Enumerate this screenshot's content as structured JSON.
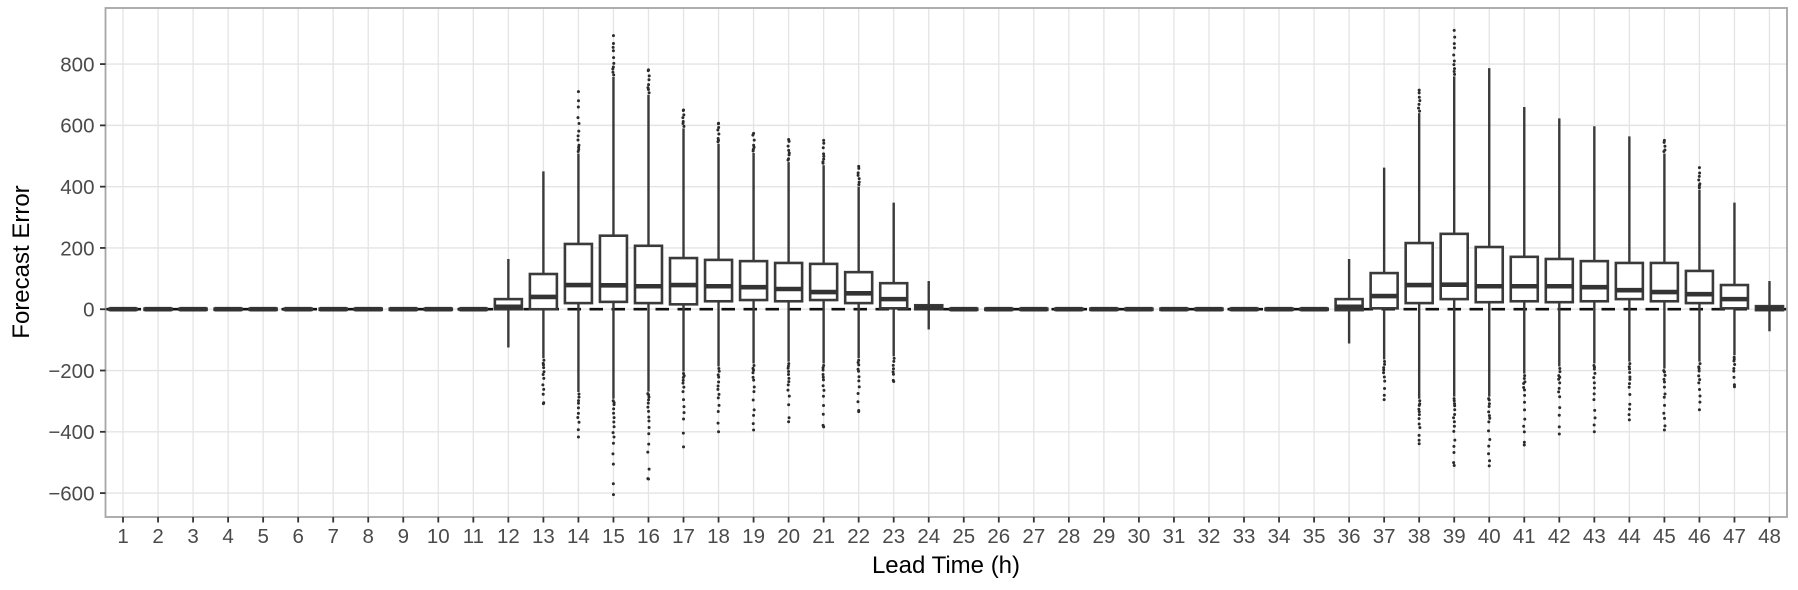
{
  "figure": {
    "kind": "boxplot-figure"
  },
  "chart_data": {
    "type": "boxplot",
    "title": "",
    "xlabel": "Lead Time (h)",
    "ylabel": "Forecast Error",
    "x_categories": [
      1,
      2,
      3,
      4,
      5,
      6,
      7,
      8,
      9,
      10,
      11,
      12,
      13,
      14,
      15,
      16,
      17,
      18,
      19,
      20,
      21,
      22,
      23,
      24,
      25,
      26,
      27,
      28,
      29,
      30,
      31,
      32,
      33,
      34,
      35,
      36,
      37,
      38,
      39,
      40,
      41,
      42,
      43,
      44,
      45,
      46,
      47,
      48
    ],
    "ylim": [
      -678,
      983
    ],
    "yticks": [
      {
        "v": -600,
        "label": "−600"
      },
      {
        "v": -400,
        "label": "−400"
      },
      {
        "v": -200,
        "label": "−200"
      },
      {
        "v": 0,
        "label": "0"
      },
      {
        "v": 200,
        "label": "200"
      },
      {
        "v": 400,
        "label": "400"
      },
      {
        "v": 600,
        "label": "600"
      },
      {
        "v": 800,
        "label": "800"
      }
    ],
    "grid": true,
    "legend": "none",
    "reference_line": {
      "y": 0,
      "style": "dashed"
    },
    "colors": {
      "box_border": "#3a3a3a",
      "box_fill": "#ffffff",
      "median": "#333333",
      "whisker": "#3a3a3a",
      "outlier": "#2b2b2b",
      "grid": "#e4e4e4",
      "panel_border": "#a6a6a6",
      "tick": "#333333",
      "tick_label": "#4a4a4a",
      "axis_title": "#000000",
      "reference": "#111111",
      "background": "#ffffff"
    },
    "boxes": [
      {
        "x": 1,
        "lo": -4,
        "q1": -2,
        "med": 0,
        "q3": 2,
        "hi": 4,
        "out_lo": null,
        "out_hi": null
      },
      {
        "x": 2,
        "lo": -4,
        "q1": -2,
        "med": 0,
        "q3": 2,
        "hi": 4,
        "out_lo": null,
        "out_hi": null
      },
      {
        "x": 3,
        "lo": -4,
        "q1": -2,
        "med": 0,
        "q3": 2,
        "hi": 4,
        "out_lo": null,
        "out_hi": null
      },
      {
        "x": 4,
        "lo": -4,
        "q1": -2,
        "med": 0,
        "q3": 2,
        "hi": 4,
        "out_lo": null,
        "out_hi": null
      },
      {
        "x": 5,
        "lo": -4,
        "q1": -2,
        "med": 0,
        "q3": 2,
        "hi": 4,
        "out_lo": null,
        "out_hi": null
      },
      {
        "x": 6,
        "lo": -4,
        "q1": -2,
        "med": 0,
        "q3": 2,
        "hi": 4,
        "out_lo": null,
        "out_hi": null
      },
      {
        "x": 7,
        "lo": -4,
        "q1": -2,
        "med": 0,
        "q3": 2,
        "hi": 4,
        "out_lo": null,
        "out_hi": null
      },
      {
        "x": 8,
        "lo": -4,
        "q1": -2,
        "med": 0,
        "q3": 2,
        "hi": 4,
        "out_lo": null,
        "out_hi": null
      },
      {
        "x": 9,
        "lo": -4,
        "q1": -2,
        "med": 0,
        "q3": 2,
        "hi": 4,
        "out_lo": null,
        "out_hi": null
      },
      {
        "x": 10,
        "lo": -4,
        "q1": -2,
        "med": 0,
        "q3": 2,
        "hi": 4,
        "out_lo": null,
        "out_hi": null
      },
      {
        "x": 11,
        "lo": -4,
        "q1": -2,
        "med": 0,
        "q3": 2,
        "hi": 4,
        "out_lo": null,
        "out_hi": null
      },
      {
        "x": 12,
        "lo": -125,
        "q1": 0,
        "med": 8,
        "q3": 33,
        "hi": 164,
        "out_lo": null,
        "out_hi": null
      },
      {
        "x": 13,
        "lo": -160,
        "q1": 0,
        "med": 40,
        "q3": 115,
        "hi": 450,
        "out_lo": -308,
        "out_hi": null
      },
      {
        "x": 14,
        "lo": -270,
        "q1": 20,
        "med": 79,
        "q3": 213,
        "hi": 508,
        "out_lo": -417,
        "out_hi": 710
      },
      {
        "x": 15,
        "lo": -292,
        "q1": 24,
        "med": 78,
        "q3": 240,
        "hi": 758,
        "out_lo": -605,
        "out_hi": 893
      },
      {
        "x": 16,
        "lo": -269,
        "q1": 20,
        "med": 75,
        "q3": 207,
        "hi": 700,
        "out_lo": -554,
        "out_hi": 781
      },
      {
        "x": 17,
        "lo": -203,
        "q1": 16,
        "med": 79,
        "q3": 167,
        "hi": 590,
        "out_lo": -449,
        "out_hi": 650
      },
      {
        "x": 18,
        "lo": -187,
        "q1": 26,
        "med": 75,
        "q3": 161,
        "hi": 540,
        "out_lo": -400,
        "out_hi": 607
      },
      {
        "x": 19,
        "lo": -177,
        "q1": 30,
        "med": 72,
        "q3": 157,
        "hi": 510,
        "out_lo": -394,
        "out_hi": 574
      },
      {
        "x": 20,
        "lo": -171,
        "q1": 26,
        "med": 66,
        "q3": 151,
        "hi": 480,
        "out_lo": -367,
        "out_hi": 554
      },
      {
        "x": 21,
        "lo": -177,
        "q1": 30,
        "med": 56,
        "q3": 148,
        "hi": 470,
        "out_lo": -384,
        "out_hi": 551
      },
      {
        "x": 22,
        "lo": -160,
        "q1": 20,
        "med": 52,
        "q3": 121,
        "hi": 400,
        "out_lo": -334,
        "out_hi": 466
      },
      {
        "x": 23,
        "lo": -154,
        "q1": 3,
        "med": 33,
        "q3": 85,
        "hi": 348,
        "out_lo": -236,
        "out_hi": null
      },
      {
        "x": 24,
        "lo": -66,
        "q1": 0,
        "med": 5,
        "q3": 13,
        "hi": 92,
        "out_lo": null,
        "out_hi": null
      },
      {
        "x": 25,
        "lo": -4,
        "q1": -2,
        "med": 0,
        "q3": 2,
        "hi": 4,
        "out_lo": null,
        "out_hi": null
      },
      {
        "x": 26,
        "lo": -4,
        "q1": -2,
        "med": 0,
        "q3": 2,
        "hi": 4,
        "out_lo": null,
        "out_hi": null
      },
      {
        "x": 27,
        "lo": -4,
        "q1": -2,
        "med": 0,
        "q3": 2,
        "hi": 4,
        "out_lo": null,
        "out_hi": null
      },
      {
        "x": 28,
        "lo": -4,
        "q1": -2,
        "med": 0,
        "q3": 2,
        "hi": 4,
        "out_lo": null,
        "out_hi": null
      },
      {
        "x": 29,
        "lo": -4,
        "q1": -2,
        "med": 0,
        "q3": 2,
        "hi": 4,
        "out_lo": null,
        "out_hi": null
      },
      {
        "x": 30,
        "lo": -4,
        "q1": -2,
        "med": 0,
        "q3": 2,
        "hi": 4,
        "out_lo": null,
        "out_hi": null
      },
      {
        "x": 31,
        "lo": -4,
        "q1": -2,
        "med": 0,
        "q3": 2,
        "hi": 4,
        "out_lo": null,
        "out_hi": null
      },
      {
        "x": 32,
        "lo": -4,
        "q1": -2,
        "med": 0,
        "q3": 2,
        "hi": 4,
        "out_lo": null,
        "out_hi": null
      },
      {
        "x": 33,
        "lo": -4,
        "q1": -2,
        "med": 0,
        "q3": 2,
        "hi": 4,
        "out_lo": null,
        "out_hi": null
      },
      {
        "x": 34,
        "lo": -4,
        "q1": -2,
        "med": 0,
        "q3": 2,
        "hi": 4,
        "out_lo": null,
        "out_hi": null
      },
      {
        "x": 35,
        "lo": -4,
        "q1": -2,
        "med": 0,
        "q3": 2,
        "hi": 4,
        "out_lo": null,
        "out_hi": null
      },
      {
        "x": 36,
        "lo": -112,
        "q1": -3,
        "med": 8,
        "q3": 33,
        "hi": 164,
        "out_lo": null,
        "out_hi": null
      },
      {
        "x": 37,
        "lo": -164,
        "q1": 3,
        "med": 43,
        "q3": 118,
        "hi": 462,
        "out_lo": -295,
        "out_hi": null
      },
      {
        "x": 38,
        "lo": -292,
        "q1": 20,
        "med": 79,
        "q3": 216,
        "hi": 640,
        "out_lo": -439,
        "out_hi": 715
      },
      {
        "x": 39,
        "lo": -285,
        "q1": 33,
        "med": 80,
        "q3": 246,
        "hi": 760,
        "out_lo": -510,
        "out_hi": 910
      },
      {
        "x": 40,
        "lo": -285,
        "q1": 23,
        "med": 75,
        "q3": 203,
        "hi": 787,
        "out_lo": -511,
        "out_hi": null
      },
      {
        "x": 41,
        "lo": -210,
        "q1": 26,
        "med": 75,
        "q3": 171,
        "hi": 660,
        "out_lo": -443,
        "out_hi": null
      },
      {
        "x": 42,
        "lo": -187,
        "q1": 23,
        "med": 75,
        "q3": 164,
        "hi": 623,
        "out_lo": -407,
        "out_hi": null
      },
      {
        "x": 43,
        "lo": -177,
        "q1": 26,
        "med": 72,
        "q3": 157,
        "hi": 597,
        "out_lo": -400,
        "out_hi": null
      },
      {
        "x": 44,
        "lo": -171,
        "q1": 33,
        "med": 62,
        "q3": 151,
        "hi": 564,
        "out_lo": -361,
        "out_hi": null
      },
      {
        "x": 45,
        "lo": -194,
        "q1": 26,
        "med": 56,
        "q3": 151,
        "hi": 508,
        "out_lo": -394,
        "out_hi": 551
      },
      {
        "x": 46,
        "lo": -171,
        "q1": 20,
        "med": 49,
        "q3": 125,
        "hi": 390,
        "out_lo": -328,
        "out_hi": 462
      },
      {
        "x": 47,
        "lo": -150,
        "q1": 3,
        "med": 33,
        "q3": 79,
        "hi": 348,
        "out_lo": -253,
        "out_hi": null
      },
      {
        "x": 48,
        "lo": -72,
        "q1": -3,
        "med": 3,
        "q3": 10,
        "hi": 92,
        "out_lo": null,
        "out_hi": null
      }
    ]
  }
}
